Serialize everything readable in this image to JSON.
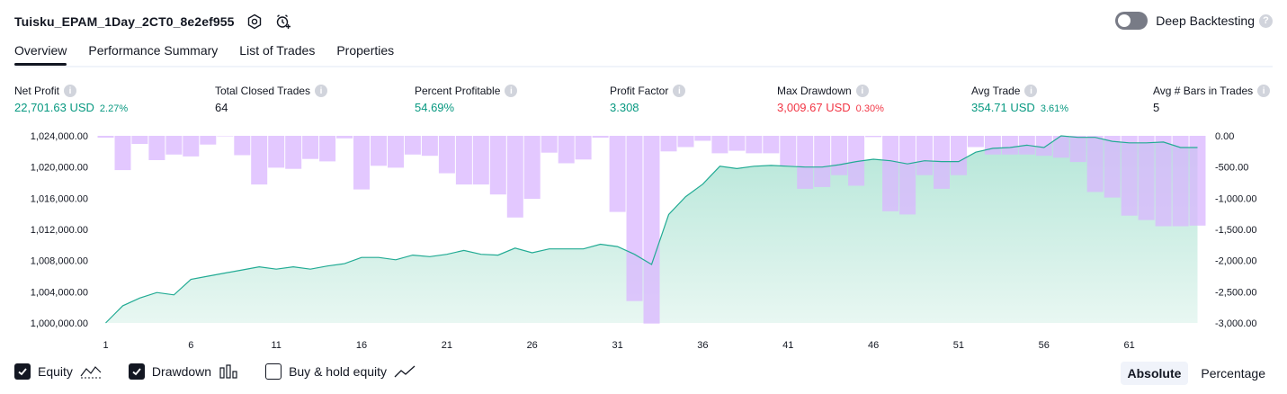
{
  "header": {
    "strategy_name": "Tuisku_EPAM_1Day_2CT0_8e2ef955",
    "deep_backtesting_label": "Deep Backtesting",
    "deep_backtesting_enabled": false
  },
  "tabs": [
    {
      "label": "Overview",
      "active": true
    },
    {
      "label": "Performance Summary",
      "active": false
    },
    {
      "label": "List of Trades",
      "active": false
    },
    {
      "label": "Properties",
      "active": false
    }
  ],
  "metrics": [
    {
      "label": "Net Profit",
      "value": "22,701.63 USD",
      "pct": "2.27%",
      "color": "#089981"
    },
    {
      "label": "Total Closed Trades",
      "value": "64",
      "pct": "",
      "color": "#131722"
    },
    {
      "label": "Percent Profitable",
      "value": "54.69%",
      "pct": "",
      "color": "#089981"
    },
    {
      "label": "Profit Factor",
      "value": "3.308",
      "pct": "",
      "color": "#089981"
    },
    {
      "label": "Max Drawdown",
      "value": "3,009.67 USD",
      "pct": "0.30%",
      "color": "#f23645"
    },
    {
      "label": "Avg Trade",
      "value": "354.71 USD",
      "pct": "3.61%",
      "color": "#089981"
    },
    {
      "label": "Avg # Bars in Trades",
      "value": "5",
      "pct": "",
      "color": "#131722"
    }
  ],
  "chart_data": {
    "type": "line",
    "x": [
      1,
      2,
      3,
      4,
      5,
      6,
      7,
      8,
      9,
      10,
      11,
      12,
      13,
      14,
      15,
      16,
      17,
      18,
      19,
      20,
      21,
      22,
      23,
      24,
      25,
      26,
      27,
      28,
      29,
      30,
      31,
      32,
      33,
      34,
      35,
      36,
      37,
      38,
      39,
      40,
      41,
      42,
      43,
      44,
      45,
      46,
      47,
      48,
      49,
      50,
      51,
      52,
      53,
      54,
      55,
      56,
      57,
      58,
      59,
      60,
      61,
      62,
      63,
      64,
      65
    ],
    "x_ticks": [
      "1",
      "6",
      "11",
      "16",
      "21",
      "26",
      "31",
      "36",
      "41",
      "46",
      "51",
      "56",
      "61"
    ],
    "x_tick_values": [
      1,
      6,
      11,
      16,
      21,
      26,
      31,
      36,
      41,
      46,
      51,
      56,
      61
    ],
    "left_ticks": [
      "1,024,000.00",
      "1,020,000.00",
      "1,016,000.00",
      "1,012,000.00",
      "1,008,000.00",
      "1,004,000.00",
      "1,000,000.00"
    ],
    "right_ticks": [
      "0.00",
      "-500.00",
      "-1,000.00",
      "-1,500.00",
      "-2,000.00",
      "-2,500.00",
      "-3,000.00"
    ],
    "ylim_left": [
      1000000,
      1024000
    ],
    "ylim_right": [
      -3000,
      0
    ],
    "series": [
      {
        "name": "Equity",
        "axis": "left",
        "color": "#22ab94",
        "values": [
          1000000,
          1002200,
          1003200,
          1003900,
          1003600,
          1005600,
          1006000,
          1006400,
          1006800,
          1007200,
          1006900,
          1007200,
          1006900,
          1007300,
          1007600,
          1008400,
          1008400,
          1008100,
          1008700,
          1008500,
          1008800,
          1009300,
          1008800,
          1008700,
          1009600,
          1009000,
          1009500,
          1009500,
          1009500,
          1010100,
          1009800,
          1008800,
          1007500,
          1013900,
          1016200,
          1017800,
          1020100,
          1019800,
          1020100,
          1020200,
          1020100,
          1020000,
          1020000,
          1020300,
          1020700,
          1021000,
          1020800,
          1020400,
          1020800,
          1020700,
          1020700,
          1021900,
          1022400,
          1022500,
          1022800,
          1022500,
          1024000,
          1023800,
          1023800,
          1023300,
          1023100,
          1023100,
          1023200,
          1022500,
          1022500
        ]
      },
      {
        "name": "Drawdown",
        "axis": "right",
        "color": "#e1c6ff",
        "values": [
          -30,
          -550,
          -130,
          -390,
          -300,
          -330,
          -140,
          0,
          -310,
          -780,
          -510,
          -530,
          -370,
          -410,
          -40,
          -860,
          -480,
          -510,
          -300,
          -320,
          -600,
          -780,
          -780,
          -940,
          -1310,
          -1010,
          -270,
          -440,
          -380,
          -30,
          -1220,
          -2650,
          -3010,
          -250,
          -180,
          -80,
          -280,
          -240,
          -280,
          -280,
          -480,
          -850,
          -820,
          -630,
          -800,
          -20,
          -1210,
          -1260,
          -630,
          -850,
          -630,
          -180,
          -300,
          -300,
          -300,
          -320,
          -350,
          -420,
          -900,
          -990,
          -1280,
          -1350,
          -1450,
          -1450,
          -1440
        ]
      }
    ]
  },
  "legend": [
    {
      "label": "Equity",
      "checked": true,
      "icon": "equity-line-icon"
    },
    {
      "label": "Drawdown",
      "checked": true,
      "icon": "drawdown-bars-icon"
    },
    {
      "label": "Buy & hold equity",
      "checked": false,
      "icon": "buy-hold-line-icon"
    }
  ],
  "modes": [
    {
      "label": "Absolute",
      "active": true
    },
    {
      "label": "Percentage",
      "active": false
    }
  ]
}
